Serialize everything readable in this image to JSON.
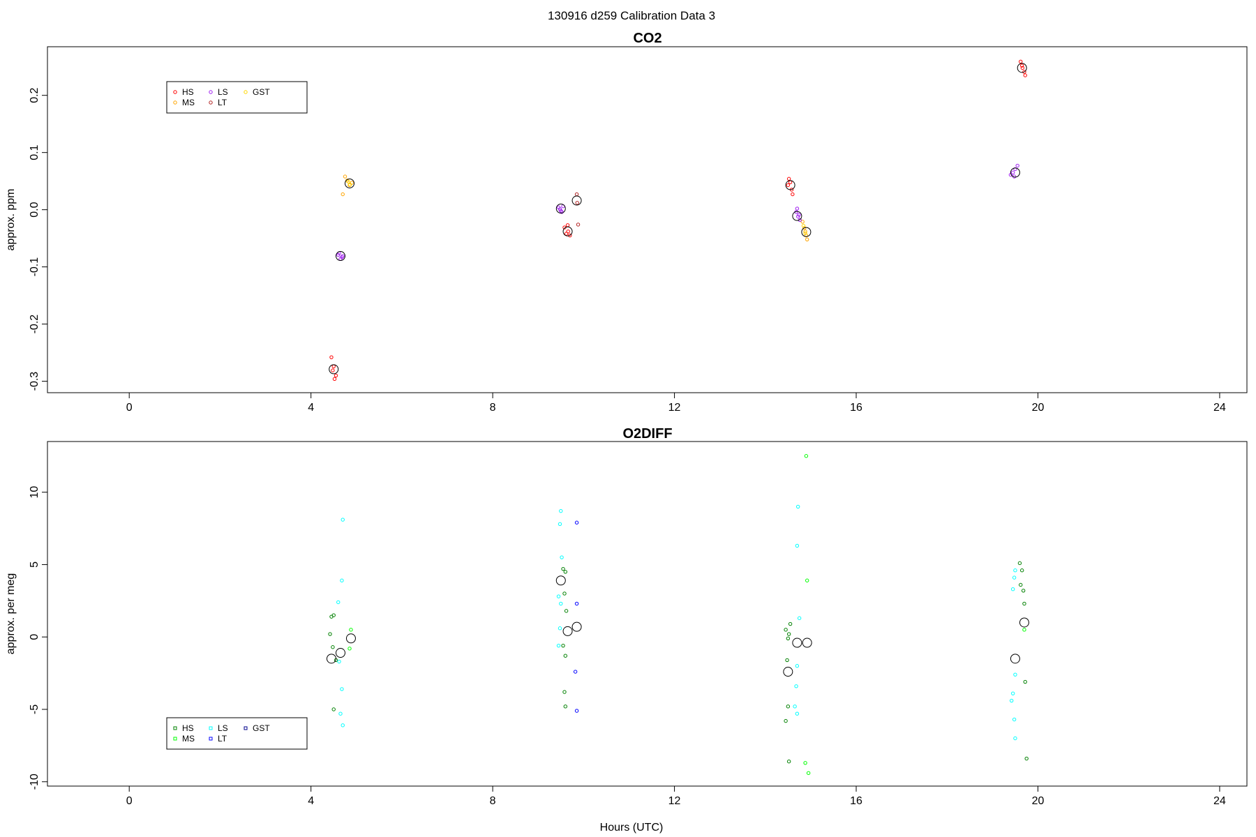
{
  "suptitle": "130916   d259   Calibration Data 3",
  "chart_data": [
    {
      "type": "scatter",
      "title": "CO2",
      "xlabel": "",
      "ylabel": "approx. ppm",
      "xlim": [
        -1.8,
        24.6
      ],
      "ylim": [
        -0.32,
        0.285
      ],
      "xticks": [
        0,
        4,
        8,
        12,
        16,
        20,
        24
      ],
      "xtick_labels": [
        "0",
        "4",
        "8",
        "12",
        "16",
        "20",
        "24"
      ],
      "yticks": [
        -0.3,
        -0.2,
        -0.1,
        0.0,
        0.1,
        0.2
      ],
      "ytick_labels": [
        "-0.3",
        "-0.2",
        "-0.1",
        "0.0",
        "0.1",
        "0.2"
      ],
      "grid": false,
      "legend_position": "top-left",
      "legend_marker": "circle",
      "series": [
        {
          "name": "HS",
          "color": "#ff0000",
          "points": [
            [
              4.45,
              -0.258
            ],
            [
              4.5,
              -0.274
            ],
            [
              4.55,
              -0.29
            ],
            [
              4.48,
              -0.281
            ],
            [
              4.52,
              -0.296
            ],
            [
              9.58,
              -0.031
            ],
            [
              9.62,
              -0.042
            ],
            [
              9.66,
              -0.038
            ],
            [
              9.7,
              -0.045
            ],
            [
              9.65,
              -0.027
            ],
            [
              14.5,
              0.043
            ],
            [
              14.55,
              0.048
            ],
            [
              14.58,
              0.035
            ],
            [
              14.6,
              0.027
            ],
            [
              14.52,
              0.054
            ],
            [
              19.62,
              0.259
            ],
            [
              19.66,
              0.248
            ],
            [
              19.7,
              0.241
            ],
            [
              19.65,
              0.252
            ],
            [
              19.72,
              0.235
            ]
          ]
        },
        {
          "name": "MS",
          "color": "#ffa500",
          "points": [
            [
              4.75,
              0.058
            ],
            [
              4.8,
              0.051
            ],
            [
              4.85,
              0.043
            ],
            [
              4.7,
              0.027
            ],
            [
              4.9,
              0.047
            ],
            [
              14.82,
              -0.021
            ],
            [
              14.86,
              -0.032
            ],
            [
              14.9,
              -0.045
            ],
            [
              14.92,
              -0.052
            ],
            [
              14.88,
              -0.038
            ]
          ]
        },
        {
          "name": "LS",
          "color": "#a020f0",
          "points": [
            [
              4.6,
              -0.079
            ],
            [
              4.65,
              -0.086
            ],
            [
              4.7,
              -0.081
            ],
            [
              4.62,
              -0.076
            ],
            [
              4.68,
              -0.083
            ],
            [
              9.45,
              0.004
            ],
            [
              9.5,
              -0.002
            ],
            [
              9.55,
              0.006
            ],
            [
              9.48,
              0.001
            ],
            [
              9.52,
              -0.004
            ],
            [
              14.68,
              -0.004
            ],
            [
              14.72,
              -0.012
            ],
            [
              14.76,
              -0.018
            ],
            [
              14.7,
              0.002
            ],
            [
              14.74,
              -0.009
            ],
            [
              19.4,
              0.061
            ],
            [
              19.45,
              0.065
            ],
            [
              19.5,
              0.071
            ],
            [
              19.55,
              0.077
            ],
            [
              19.48,
              0.058
            ]
          ]
        },
        {
          "name": "LT",
          "color": "#b22222",
          "points": [
            [
              9.85,
              0.027
            ],
            [
              9.88,
              -0.026
            ],
            [
              9.86,
              0.012
            ]
          ]
        },
        {
          "name": "GST",
          "color": "#ffd700",
          "points": [
            [
              4.82,
              0.049
            ],
            [
              4.86,
              0.044
            ],
            [
              14.84,
              -0.028
            ],
            [
              14.88,
              -0.041
            ]
          ]
        }
      ],
      "means": [
        [
          4.5,
          -0.279
        ],
        [
          4.65,
          -0.081
        ],
        [
          4.85,
          0.046
        ],
        [
          9.5,
          0.002
        ],
        [
          9.65,
          -0.038
        ],
        [
          9.85,
          0.016
        ],
        [
          14.55,
          0.043
        ],
        [
          14.7,
          -0.011
        ],
        [
          14.9,
          -0.039
        ],
        [
          19.5,
          0.065
        ],
        [
          19.65,
          0.248
        ]
      ]
    },
    {
      "type": "scatter",
      "title": "O2DIFF",
      "xlabel": "Hours (UTC)",
      "ylabel": "approx. per meg",
      "xlim": [
        -1.8,
        24.6
      ],
      "ylim": [
        -10.3,
        13.5
      ],
      "xticks": [
        0,
        4,
        8,
        12,
        16,
        20,
        24
      ],
      "xtick_labels": [
        "0",
        "4",
        "8",
        "12",
        "16",
        "20",
        "24"
      ],
      "yticks": [
        -10,
        -5,
        0,
        5,
        10
      ],
      "ytick_labels": [
        "-10",
        "-5",
        "0",
        "5",
        "10"
      ],
      "grid": false,
      "legend_position": "bottom-left",
      "legend_marker": "square",
      "series": [
        {
          "name": "HS",
          "color": "#008000",
          "points": [
            [
              4.45,
              1.4
            ],
            [
              4.5,
              1.5
            ],
            [
              4.42,
              0.2
            ],
            [
              4.48,
              -0.7
            ],
            [
              4.5,
              -5.0
            ],
            [
              4.55,
              -1.6
            ],
            [
              9.55,
              4.7
            ],
            [
              9.6,
              4.5
            ],
            [
              9.58,
              3.0
            ],
            [
              9.62,
              1.8
            ],
            [
              9.55,
              -0.6
            ],
            [
              9.6,
              -1.3
            ],
            [
              9.58,
              -3.8
            ],
            [
              9.6,
              -4.8
            ],
            [
              14.45,
              0.5
            ],
            [
              14.5,
              -0.1
            ],
            [
              14.55,
              0.9
            ],
            [
              14.52,
              0.2
            ],
            [
              14.48,
              -1.6
            ],
            [
              14.5,
              -4.8
            ],
            [
              14.45,
              -5.8
            ],
            [
              14.52,
              -8.6
            ],
            [
              19.6,
              5.1
            ],
            [
              19.65,
              4.6
            ],
            [
              19.62,
              3.6
            ],
            [
              19.68,
              3.2
            ],
            [
              19.7,
              2.3
            ],
            [
              19.72,
              -3.1
            ],
            [
              19.75,
              -8.4
            ]
          ]
        },
        {
          "name": "MS",
          "color": "#00ff00",
          "points": [
            [
              4.88,
              0.5
            ],
            [
              4.85,
              -0.8
            ],
            [
              14.9,
              12.5
            ],
            [
              14.92,
              3.9
            ],
            [
              14.88,
              -8.7
            ],
            [
              14.95,
              -9.4
            ],
            [
              19.7,
              0.5
            ]
          ]
        },
        {
          "name": "LS",
          "color": "#00ffff",
          "points": [
            [
              4.7,
              8.1
            ],
            [
              4.68,
              3.9
            ],
            [
              4.6,
              2.4
            ],
            [
              4.62,
              -1.7
            ],
            [
              4.68,
              -3.6
            ],
            [
              4.65,
              -5.3
            ],
            [
              4.7,
              -6.1
            ],
            [
              9.5,
              8.7
            ],
            [
              9.48,
              7.8
            ],
            [
              9.52,
              5.5
            ],
            [
              9.45,
              2.8
            ],
            [
              9.5,
              2.3
            ],
            [
              9.48,
              0.6
            ],
            [
              9.45,
              -0.6
            ],
            [
              14.72,
              9.0
            ],
            [
              14.7,
              6.3
            ],
            [
              14.75,
              1.3
            ],
            [
              14.7,
              -2.0
            ],
            [
              14.68,
              -3.4
            ],
            [
              14.65,
              -4.8
            ],
            [
              14.7,
              -5.3
            ],
            [
              19.5,
              4.6
            ],
            [
              19.48,
              4.1
            ],
            [
              19.45,
              3.3
            ],
            [
              19.5,
              -2.6
            ],
            [
              19.45,
              -3.9
            ],
            [
              19.42,
              -4.4
            ],
            [
              19.48,
              -5.7
            ],
            [
              19.5,
              -7.0
            ]
          ]
        },
        {
          "name": "LT",
          "color": "#0000ff",
          "points": [
            [
              9.85,
              7.9
            ],
            [
              9.85,
              2.3
            ],
            [
              9.82,
              -2.4
            ],
            [
              9.85,
              -5.1
            ]
          ]
        },
        {
          "name": "GST",
          "color": "#00008b",
          "points": []
        }
      ],
      "means": [
        [
          4.45,
          -1.5
        ],
        [
          4.65,
          -1.1
        ],
        [
          4.88,
          -0.1
        ],
        [
          9.5,
          3.9
        ],
        [
          9.65,
          0.4
        ],
        [
          9.85,
          0.7
        ],
        [
          14.5,
          -2.4
        ],
        [
          14.7,
          -0.4
        ],
        [
          14.92,
          -0.4
        ],
        [
          19.5,
          -1.5
        ],
        [
          19.7,
          1.0
        ]
      ]
    }
  ]
}
